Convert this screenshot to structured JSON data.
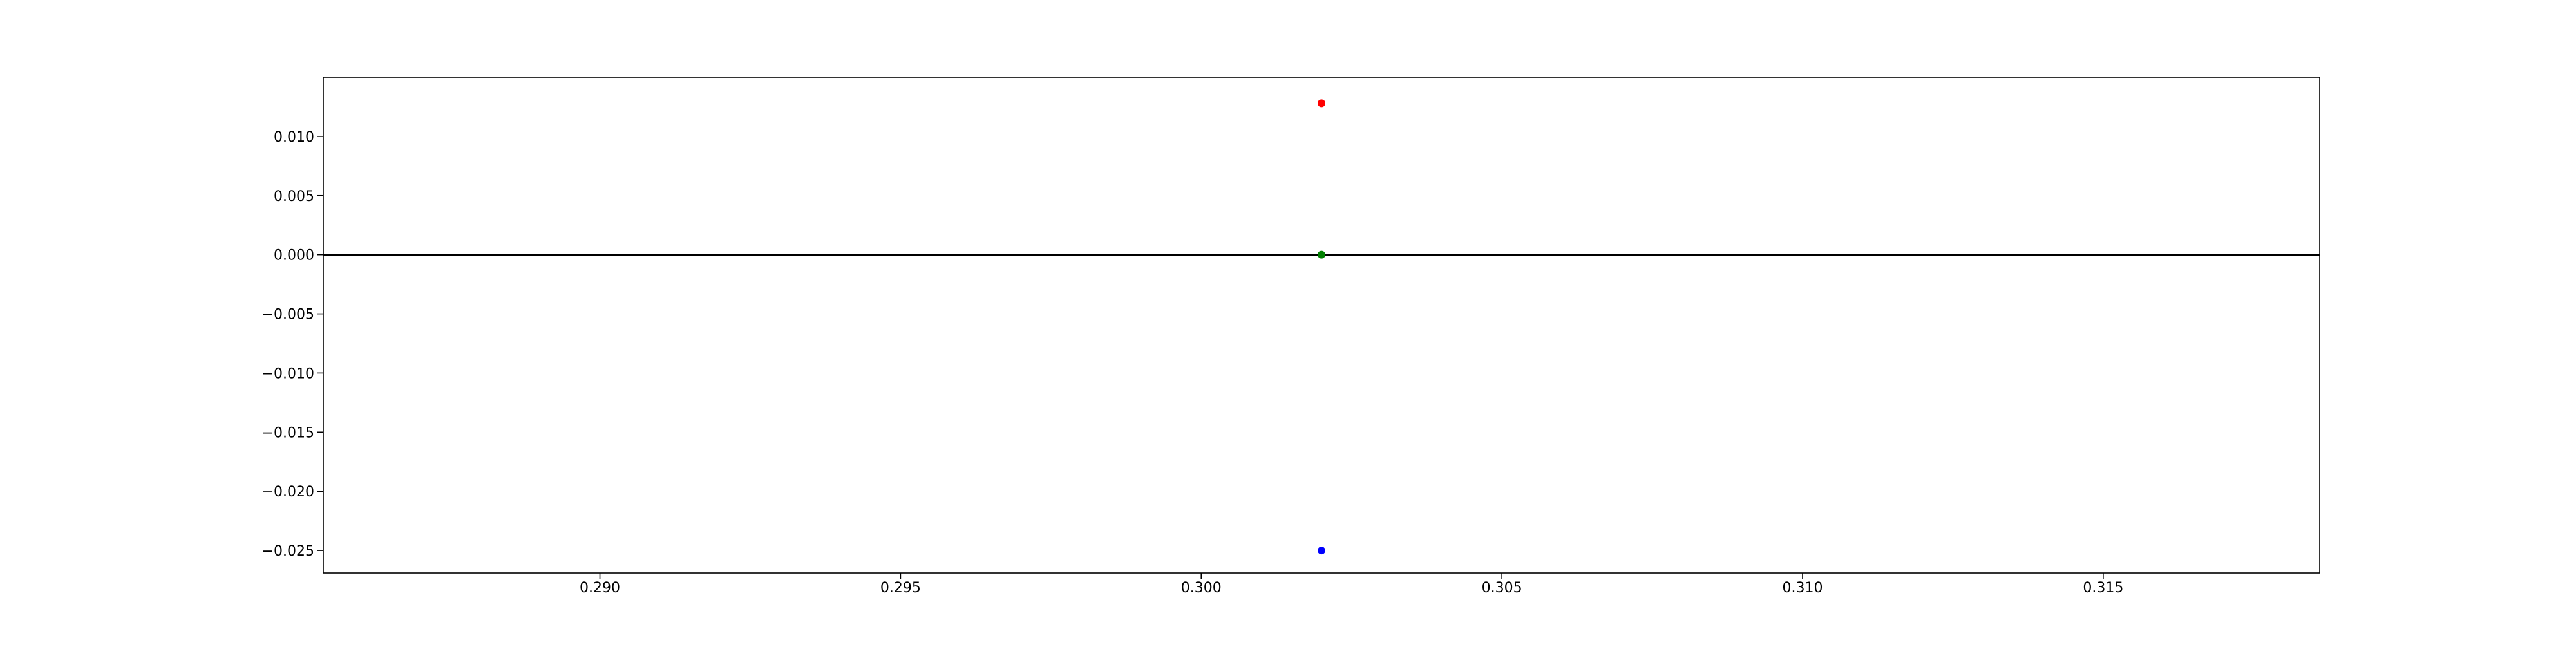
{
  "chart_data": {
    "type": "scatter",
    "title": "",
    "xlabel": "",
    "ylabel": "",
    "xlim": [
      0.2854,
      0.3186
    ],
    "ylim": [
      -0.0269,
      0.015
    ],
    "x_ticks": [
      {
        "value": 0.29,
        "label": "0.290"
      },
      {
        "value": 0.295,
        "label": "0.295"
      },
      {
        "value": 0.3,
        "label": "0.300"
      },
      {
        "value": 0.305,
        "label": "0.305"
      },
      {
        "value": 0.31,
        "label": "0.310"
      },
      {
        "value": 0.315,
        "label": "0.315"
      }
    ],
    "y_ticks": [
      {
        "value": 0.01,
        "label": "0.010"
      },
      {
        "value": 0.005,
        "label": "0.005"
      },
      {
        "value": 0.0,
        "label": "0.000"
      },
      {
        "value": -0.005,
        "label": "−0.005"
      },
      {
        "value": -0.01,
        "label": "−0.010"
      },
      {
        "value": -0.015,
        "label": "−0.015"
      },
      {
        "value": -0.02,
        "label": "−0.020"
      },
      {
        "value": -0.025,
        "label": "−0.025"
      }
    ],
    "reference_lines": [
      {
        "orientation": "horizontal",
        "y": 0.0,
        "color": "#000000"
      }
    ],
    "points": [
      {
        "x": 0.302,
        "y": 0.0128,
        "color": "#ff0000"
      },
      {
        "x": 0.302,
        "y": 0.0,
        "color": "#008000"
      },
      {
        "x": 0.302,
        "y": -0.025,
        "color": "#0000ff"
      }
    ],
    "grid": false,
    "legend": "none"
  }
}
